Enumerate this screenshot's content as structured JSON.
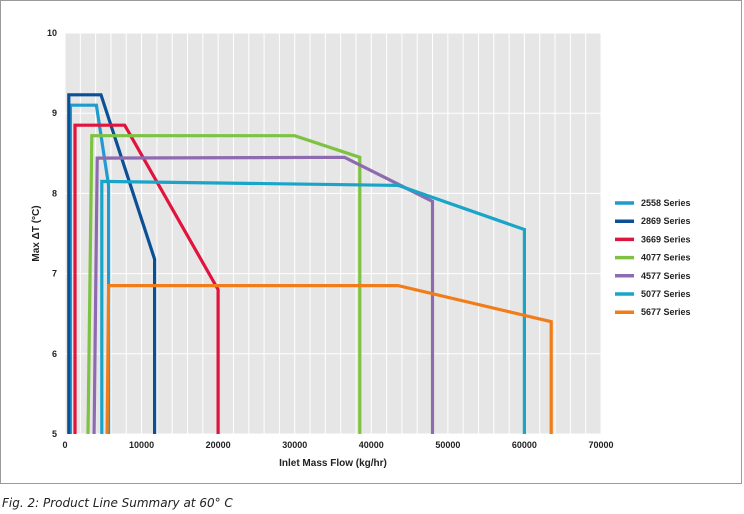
{
  "caption": "Fig. 2: Product Line Summary at 60° C",
  "chart_data": {
    "type": "line",
    "title": "",
    "xlabel": "Inlet Mass Flow (kg/hr)",
    "ylabel": "Max ΔT (°C)",
    "xlim": [
      0,
      70000
    ],
    "ylim": [
      5,
      10
    ],
    "xticks": [
      0,
      10000,
      20000,
      30000,
      40000,
      50000,
      60000,
      70000
    ],
    "yticks": [
      5,
      6,
      7,
      8,
      9,
      10
    ],
    "x_minor_step": 2000,
    "grid": true,
    "legend_position": "right",
    "series": [
      {
        "name": "2558 Series",
        "color": "#1f9bd0",
        "points": [
          [
            700,
            5
          ],
          [
            700,
            9.1
          ],
          [
            4100,
            9.1
          ],
          [
            5700,
            8.1
          ],
          [
            5700,
            5
          ]
        ]
      },
      {
        "name": "2869 Series",
        "color": "#0b4f96",
        "points": [
          [
            500,
            5
          ],
          [
            500,
            9.23
          ],
          [
            4700,
            9.23
          ],
          [
            11700,
            7.18
          ],
          [
            11700,
            5
          ]
        ]
      },
      {
        "name": "3669 Series",
        "color": "#e0143c",
        "points": [
          [
            1300,
            5
          ],
          [
            1300,
            8.85
          ],
          [
            7800,
            8.85
          ],
          [
            20000,
            6.8
          ],
          [
            20000,
            5
          ]
        ]
      },
      {
        "name": "4077 Series",
        "color": "#7dc242",
        "points": [
          [
            3000,
            5
          ],
          [
            3500,
            8.72
          ],
          [
            30000,
            8.72
          ],
          [
            38500,
            8.45
          ],
          [
            38500,
            5
          ]
        ]
      },
      {
        "name": "4577 Series",
        "color": "#8e6bb0",
        "points": [
          [
            3800,
            5
          ],
          [
            4200,
            8.44
          ],
          [
            36500,
            8.45
          ],
          [
            48000,
            7.9
          ],
          [
            48000,
            5
          ]
        ]
      },
      {
        "name": "5077 Series",
        "color": "#1aa5c8",
        "points": [
          [
            4800,
            5
          ],
          [
            4800,
            8.15
          ],
          [
            43500,
            8.1
          ],
          [
            60000,
            7.55
          ],
          [
            60000,
            5
          ]
        ]
      },
      {
        "name": "5677 Series",
        "color": "#f07d1a",
        "points": [
          [
            5500,
            5
          ],
          [
            5700,
            6.85
          ],
          [
            43500,
            6.85
          ],
          [
            63500,
            6.4
          ],
          [
            63500,
            5
          ]
        ]
      }
    ]
  }
}
